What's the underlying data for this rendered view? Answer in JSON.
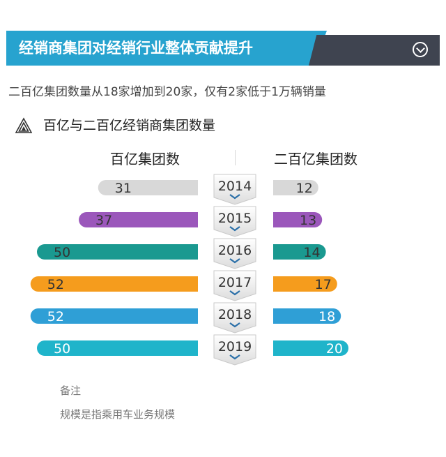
{
  "header": {
    "title": "经销商集团对经销行业整体贡献提升",
    "colors": {
      "blue": "#27a3cf",
      "dark": "#3f4450"
    },
    "icon": "chevron-down-circle-icon"
  },
  "subtitle": "二百亿集团数量从18家增加到20家，仅有2家低于1万辆销量",
  "section": {
    "title": "百亿与二百亿经销商集团数量",
    "icon": "triangle-icon"
  },
  "chart_data": {
    "type": "bar",
    "title": "百亿与二百亿经销商集团数量",
    "layout": "butterfly",
    "categories": [
      "2014",
      "2015",
      "2016",
      "2017",
      "2018",
      "2019"
    ],
    "series": [
      {
        "name": "百亿集团数",
        "values": [
          31,
          37,
          50,
          52,
          52,
          50
        ]
      },
      {
        "name": "二百亿集团数",
        "values": [
          12,
          13,
          14,
          17,
          18,
          20
        ]
      }
    ],
    "bar_colors": [
      "#d8d8d8",
      "#9b57bb",
      "#1a9990",
      "#f59c1d",
      "#2f9fd6",
      "#1fb4ca"
    ],
    "label_colors": [
      "#333333",
      "#333333",
      "#333333",
      "#333333",
      "#ffffff",
      "#ffffff"
    ],
    "xlabel": "",
    "ylabel": ""
  },
  "notes": {
    "heading": "备注",
    "text": "规模是指乘用车业务规模"
  }
}
